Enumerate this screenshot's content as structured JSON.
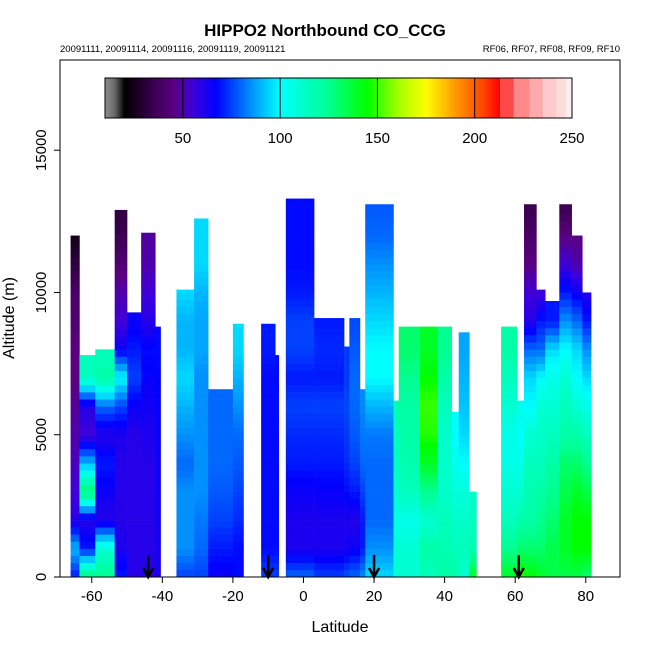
{
  "chart_data": {
    "type": "heatmap",
    "title": "HIPPO2 Northbound CO_CCG",
    "subtitle_left": "20091111, 20091114, 20091116, 20091119, 20091121",
    "subtitle_right": "RF06, RF07, RF08, RF09, RF10",
    "xlabel": "Latitude",
    "ylabel": "Altitude (m)",
    "xlim": [
      -69,
      89.7
    ],
    "ylim": [
      0,
      18170
    ],
    "xticks": [
      -60,
      -40,
      -20,
      0,
      20,
      40,
      60,
      80
    ],
    "yticks": [
      0,
      5000,
      10000,
      15000
    ],
    "colorbar": {
      "range": [
        10,
        250
      ],
      "ticks": [
        50,
        100,
        150,
        200,
        250
      ],
      "stops": [
        [
          10,
          "#8c8c8c"
        ],
        [
          15,
          "#6a6a6a"
        ],
        [
          20,
          "#000000"
        ],
        [
          35,
          "#3a0050"
        ],
        [
          45,
          "#5a0080"
        ],
        [
          55,
          "#4000d8"
        ],
        [
          67,
          "#0000ff"
        ],
        [
          85,
          "#0090ff"
        ],
        [
          100,
          "#00ffff"
        ],
        [
          125,
          "#00ff90"
        ],
        [
          145,
          "#00ff00"
        ],
        [
          160,
          "#a0ff00"
        ],
        [
          175,
          "#ffff00"
        ],
        [
          190,
          "#ff9900"
        ],
        [
          205,
          "#ff4000"
        ],
        [
          213,
          "#ff0000"
        ]
      ],
      "discrete": [
        [
          213,
          220,
          "#ff4848"
        ],
        [
          220,
          228,
          "#ff8888"
        ],
        [
          228,
          235,
          "#ffaaaa"
        ],
        [
          235,
          242,
          "#ffcaca"
        ],
        [
          242,
          247,
          "#ffdddd"
        ],
        [
          247,
          250,
          "#ffeeee"
        ]
      ]
    },
    "altitude_step_m": 1000,
    "columns": [
      {
        "lat": [
          -66,
          -63.5
        ],
        "top": 12000,
        "co": [
          70,
          90,
          60,
          55,
          52,
          50,
          48,
          45,
          45,
          42,
          40,
          32,
          25
        ]
      },
      {
        "lat": [
          -63.5,
          -59
        ],
        "top": 7800,
        "co": [
          130,
          70,
          60,
          130,
          90,
          55,
          60,
          115
        ]
      },
      {
        "lat": [
          -59,
          -53.5
        ],
        "top": 8000,
        "co": [
          125,
          110,
          60,
          65,
          70,
          60,
          80,
          120,
          115
        ]
      },
      {
        "lat": [
          -53.5,
          -50
        ],
        "top": 12900,
        "co": [
          70,
          62,
          60,
          60,
          60,
          62,
          75,
          100,
          65,
          55,
          50,
          42,
          35,
          32
        ]
      },
      {
        "lat": [
          -50,
          -46
        ],
        "top": 9300,
        "co": [
          60,
          60,
          60,
          60,
          60,
          60,
          65,
          75,
          70,
          65
        ]
      },
      {
        "lat": [
          -46,
          -42
        ],
        "top": 12100,
        "co": [
          60,
          60,
          60,
          60,
          60,
          62,
          64,
          66,
          68,
          60,
          55,
          50,
          48
        ]
      },
      {
        "lat": [
          -42,
          -40.5
        ],
        "top": 8800,
        "co": [
          62,
          63,
          64,
          65,
          65,
          66,
          66,
          67,
          68
        ]
      },
      {
        "lat": [
          -36,
          -31
        ],
        "top": 10100,
        "co": [
          75,
          85,
          85,
          85,
          80,
          85,
          90,
          95,
          90,
          90,
          95
        ]
      },
      {
        "lat": [
          -31,
          -27
        ],
        "top": 12600,
        "co": [
          75,
          80,
          82,
          85,
          85,
          85,
          85,
          85,
          88,
          88,
          90,
          95,
          95
        ]
      },
      {
        "lat": [
          -27,
          -20
        ],
        "top": 6600,
        "co": [
          65,
          70,
          75,
          78,
          80,
          80,
          80
        ]
      },
      {
        "lat": [
          -20,
          -17
        ],
        "top": 8900,
        "co": [
          68,
          68,
          72,
          75,
          78,
          80,
          85,
          90,
          95
        ]
      },
      {
        "lat": [
          -12,
          -8
        ],
        "top": 8900,
        "co": [
          75,
          68,
          68,
          68,
          68,
          68,
          68,
          68,
          70
        ]
      },
      {
        "lat": [
          -8,
          -7
        ],
        "top": 7800,
        "co": [
          75,
          68,
          68,
          68,
          68,
          68,
          68,
          68
        ]
      },
      {
        "lat": [
          -5,
          3
        ],
        "top": 13300,
        "co": [
          80,
          62,
          62,
          65,
          70,
          72,
          75,
          70,
          75,
          75,
          70,
          68,
          68,
          68
        ]
      },
      {
        "lat": [
          3,
          11.5
        ],
        "top": 9100,
        "co": [
          75,
          62,
          62,
          66,
          70,
          72,
          75,
          70,
          72,
          70
        ]
      },
      {
        "lat": [
          11.5,
          13
        ],
        "top": 8100,
        "co": [
          78,
          63,
          62,
          68,
          72,
          74,
          76,
          74,
          74
        ]
      },
      {
        "lat": [
          13,
          16
        ],
        "top": 9100,
        "co": [
          80,
          65,
          60,
          70,
          75,
          78,
          80,
          80,
          78,
          76
        ]
      },
      {
        "lat": [
          16,
          17.5
        ],
        "top": 6600,
        "co": [
          85,
          70,
          70,
          75,
          80,
          82,
          84
        ]
      },
      {
        "lat": [
          17.5,
          25.5
        ],
        "top": 13100,
        "co": [
          95,
          85,
          80,
          80,
          80,
          82,
          90,
          100,
          100,
          95,
          90,
          85,
          80,
          78
        ]
      },
      {
        "lat": [
          25.5,
          27
        ],
        "top": 6200,
        "co": [
          110,
          110,
          105,
          110,
          115,
          115,
          118
        ]
      },
      {
        "lat": [
          27,
          33
        ],
        "top": 8800,
        "co": [
          110,
          110,
          105,
          115,
          118,
          120,
          120,
          125,
          130
        ]
      },
      {
        "lat": [
          33,
          38
        ],
        "top": 8800,
        "co": [
          115,
          120,
          110,
          125,
          140,
          148,
          150,
          145,
          140
        ]
      },
      {
        "lat": [
          38,
          42
        ],
        "top": 8800,
        "co": [
          120,
          118,
          115,
          112,
          112,
          112,
          115,
          120,
          125
        ]
      },
      {
        "lat": [
          42,
          44
        ],
        "top": 5800,
        "co": [
          120,
          115,
          112,
          108,
          105,
          100
        ]
      },
      {
        "lat": [
          44,
          47
        ],
        "top": 8600,
        "co": [
          110,
          115,
          112,
          108,
          100,
          95,
          92,
          90,
          88
        ]
      },
      {
        "lat": [
          47,
          49
        ],
        "top": 3000,
        "co": [
          140,
          118,
          115,
          112
        ]
      },
      {
        "lat": [
          56,
          60.5
        ],
        "top": 8800,
        "co": [
          140,
          125,
          115,
          110,
          105,
          105,
          110,
          115,
          120
        ]
      },
      {
        "lat": [
          60.5,
          62.5
        ],
        "top": 6200,
        "co": [
          150,
          130,
          120,
          110,
          105,
          100,
          105
        ]
      },
      {
        "lat": [
          62.5,
          66
        ],
        "top": 13100,
        "co": [
          145,
          130,
          120,
          118,
          115,
          110,
          100,
          95,
          80,
          60,
          55,
          45,
          40,
          35
        ]
      },
      {
        "lat": [
          66,
          68.5
        ],
        "top": 10100,
        "co": [
          140,
          130,
          125,
          120,
          115,
          112,
          110,
          100,
          80,
          70,
          55
        ]
      },
      {
        "lat": [
          68.5,
          72.5
        ],
        "top": 9700,
        "co": [
          135,
          135,
          130,
          125,
          120,
          115,
          110,
          105,
          95,
          70
        ]
      },
      {
        "lat": [
          72.5,
          76
        ],
        "top": 13100,
        "co": [
          135,
          140,
          140,
          135,
          130,
          120,
          115,
          110,
          100,
          85,
          70,
          55,
          45,
          35
        ]
      },
      {
        "lat": [
          76,
          79
        ],
        "top": 12000,
        "co": [
          135,
          145,
          145,
          140,
          130,
          120,
          110,
          100,
          95,
          80,
          65,
          50,
          45
        ]
      },
      {
        "lat": [
          79,
          81.5
        ],
        "top": 10000,
        "co": [
          130,
          145,
          145,
          135,
          125,
          115,
          105,
          95,
          85,
          70,
          60
        ]
      }
    ],
    "arrows_lat": [
      -44,
      -10,
      20,
      61
    ]
  }
}
